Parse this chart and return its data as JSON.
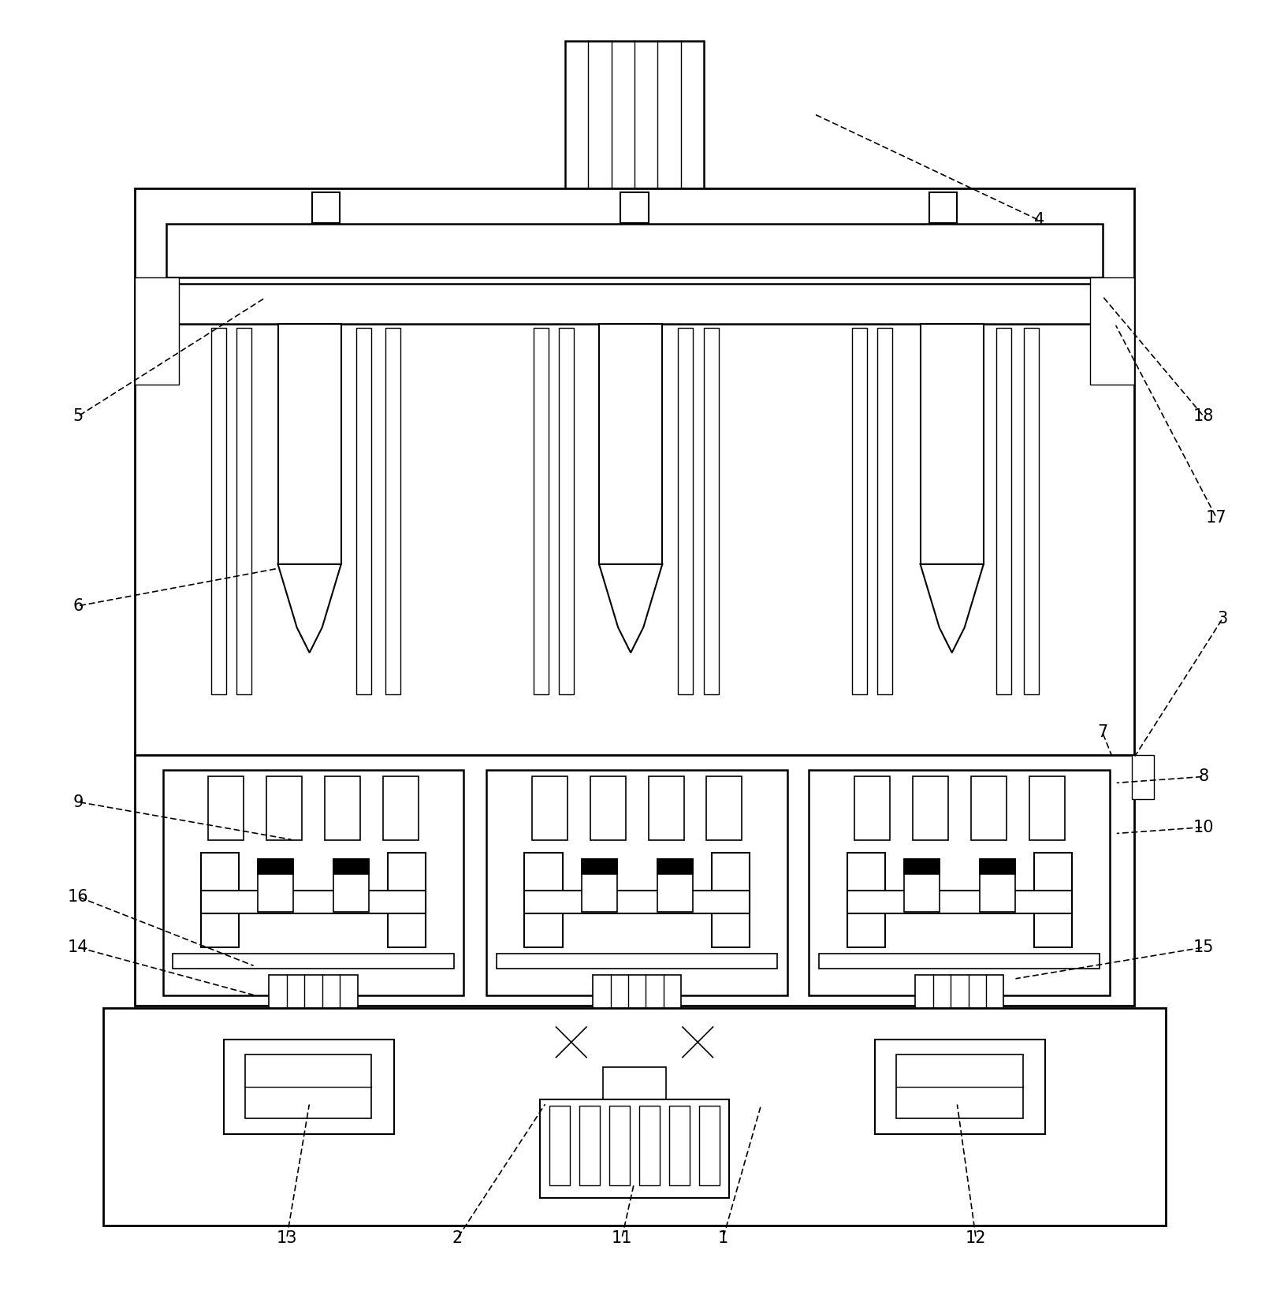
{
  "bg_color": "#ffffff",
  "lc": "#000000",
  "lw": 1.8,
  "lw_thin": 1.0,
  "fig_width": 16.1,
  "fig_height": 16.66,
  "label_fontsize": 15
}
